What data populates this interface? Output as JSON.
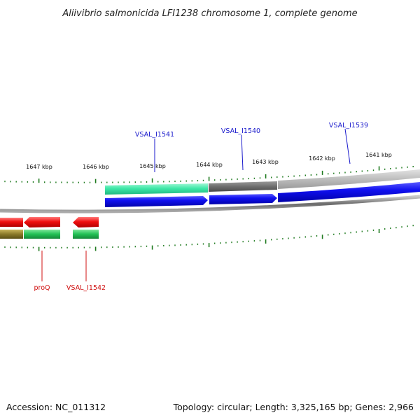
{
  "title": "Aliivibrio salmonicida LFI1238 chromosome 1, complete genome",
  "footer": {
    "accession": "Accession: NC_011312",
    "summary": "Topology: circular; Length: 3,325,165 bp; Genes: 2,966"
  },
  "scale_labels": [
    "1647 kbp",
    "1646 kbp",
    "1645 kbp",
    "1644 kbp",
    "1643 kbp",
    "1642 kbp",
    "1641 kbp"
  ],
  "genes_top": [
    {
      "name": "VSAL_I1541",
      "color": "#1a1acc"
    },
    {
      "name": "VSAL_I1540",
      "color": "#1a1acc"
    },
    {
      "name": "VSAL_I1539",
      "color": "#1a1acc"
    }
  ],
  "genes_bottom": [
    {
      "name": "proQ",
      "color": "#d01010"
    },
    {
      "name": "VSAL_I1542",
      "color": "#d01010"
    }
  ],
  "colors": {
    "backbone": "#808080",
    "tick": "#1e7a1e",
    "cds_forward": "#0a0ae0",
    "cds_reverse": "#e00a0a",
    "gene_green": "#22c055",
    "gene_teal": "#3ee8a8",
    "gene_grey": "#7a7a7a"
  }
}
